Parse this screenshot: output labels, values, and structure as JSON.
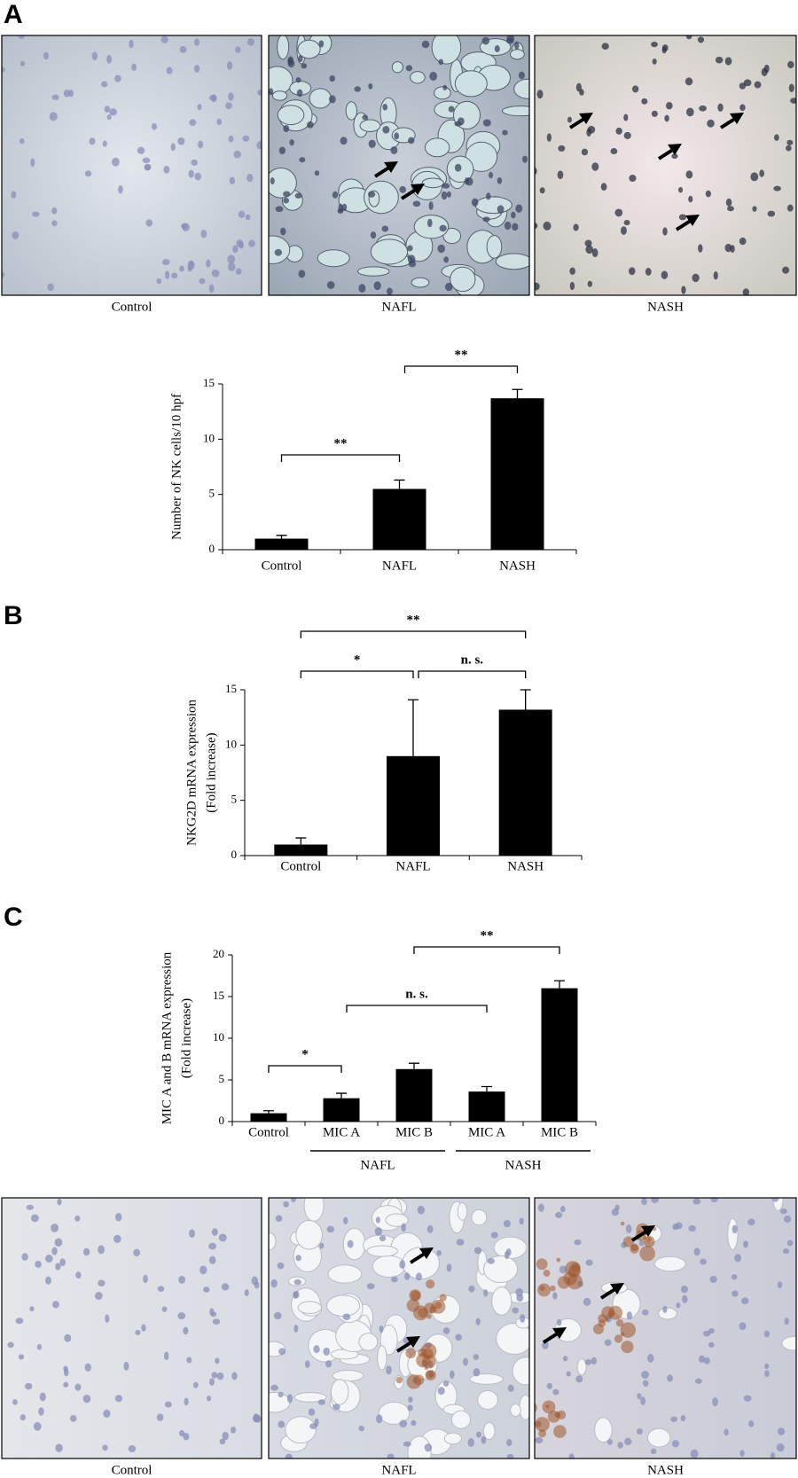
{
  "panels": {
    "letters": [
      "A",
      "B",
      "C"
    ],
    "top_captions": [
      "Control",
      "NAFL",
      "NASH"
    ],
    "bottom_captions": [
      "Control",
      "NAFL",
      "NASH"
    ]
  },
  "chart_data": [
    {
      "type": "bar",
      "ylabel": [
        "Number of NK cells/10 hpf"
      ],
      "categories": [
        "Control",
        "NAFL",
        "NASH"
      ],
      "values": [
        1,
        5.5,
        13.7
      ],
      "errors": [
        0.3,
        0.8,
        0.8
      ],
      "color": "#000000",
      "ylim": [
        0,
        15
      ],
      "yticks": [
        0,
        5,
        10,
        15
      ],
      "annotations": [
        "**",
        "**"
      ]
    },
    {
      "type": "bar",
      "ylabel": [
        "NKG2D mRNA expression",
        "(Fold increase)"
      ],
      "categories": [
        "Control",
        "NAFL",
        "NASH"
      ],
      "values": [
        1,
        9,
        13.2
      ],
      "errors": [
        0.6,
        5.1,
        1.8
      ],
      "color": "#000000",
      "ylim": [
        0,
        15
      ],
      "yticks": [
        0,
        5,
        10,
        15
      ],
      "annotations": [
        "*",
        "n. s.",
        "**"
      ]
    },
    {
      "type": "bar",
      "ylabel": [
        "MIC A and B mRNA expression",
        "(Fold increase)"
      ],
      "categories": [
        "Control",
        "MIC A",
        "MIC B",
        "MIC A",
        "MIC B"
      ],
      "values": [
        1,
        2.8,
        6.3,
        3.6,
        16
      ],
      "errors": [
        0.3,
        0.6,
        0.7,
        0.6,
        0.9
      ],
      "groups": [
        "NAFL",
        "NASH"
      ],
      "color": "#000000",
      "ylim": [
        0,
        20
      ],
      "yticks": [
        0,
        5,
        10,
        15,
        20
      ],
      "annotations": [
        "*",
        "n. s.",
        "**"
      ]
    }
  ]
}
